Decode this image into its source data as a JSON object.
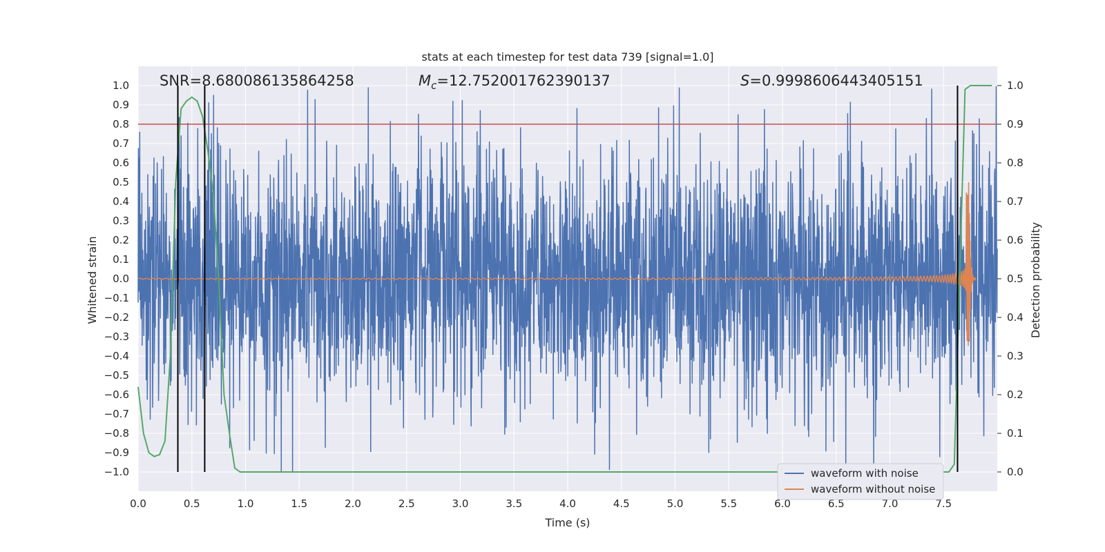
{
  "chart_data": {
    "type": "line",
    "title": "stats at each timestep for test data 739 [signal=1.0]",
    "xlabel": "Time (s)",
    "ylabel": "Whitened strain",
    "y2label": "Detection probability",
    "xlim": [
      0.0,
      8.0
    ],
    "ylim": [
      -1.1,
      1.1
    ],
    "y2lim": [
      -0.05,
      1.05
    ],
    "xticks": [
      0.0,
      0.5,
      1.0,
      1.5,
      2.0,
      2.5,
      3.0,
      3.5,
      4.0,
      4.5,
      5.0,
      5.5,
      6.0,
      6.5,
      7.0,
      7.5
    ],
    "xtick_labels": [
      "0.0",
      "0.5",
      "1.0",
      "1.5",
      "2.0",
      "2.5",
      "3.0",
      "3.5",
      "4.0",
      "4.5",
      "5.0",
      "5.5",
      "6.0",
      "6.5",
      "7.0",
      "7.5"
    ],
    "yticks": [
      -1.0,
      -0.9,
      -0.8,
      -0.7,
      -0.6,
      -0.5,
      -0.4,
      -0.3,
      -0.2,
      -0.1,
      0.0,
      0.1,
      0.2,
      0.3,
      0.4,
      0.5,
      0.6,
      0.7,
      0.8,
      0.9,
      1.0
    ],
    "ytick_labels": [
      "−1.0",
      "−0.9",
      "−0.8",
      "−0.7",
      "−0.6",
      "−0.5",
      "−0.4",
      "−0.3",
      "−0.2",
      "−0.1",
      "0.0",
      "0.1",
      "0.2",
      "0.3",
      "0.4",
      "0.5",
      "0.6",
      "0.7",
      "0.8",
      "0.9",
      "1.0"
    ],
    "y2ticks": [
      0.0,
      0.1,
      0.2,
      0.3,
      0.4,
      0.5,
      0.6,
      0.7,
      0.8,
      0.9,
      1.0
    ],
    "y2tick_labels": [
      "0.0",
      "0.1",
      "0.2",
      "0.3",
      "0.4",
      "0.5",
      "0.6",
      "0.7",
      "0.8",
      "0.9",
      "1.0"
    ],
    "threshold_line": {
      "value": 0.9,
      "axis": "y2",
      "color": "#c44e52"
    },
    "vertical_lines": [
      {
        "x": 0.37,
        "color": "#000000"
      },
      {
        "x": 0.62,
        "color": "#000000"
      },
      {
        "x": 7.63,
        "color": "#000000"
      }
    ],
    "annotations": {
      "snr": "SNR=8.680086135864258",
      "mc_symbol": "M",
      "mc_sub": "c",
      "mc_value": "=12.752001762390137",
      "s_symbol": "S",
      "s_value": "=0.9998606443405151"
    },
    "series": [
      {
        "name": "waveform with noise",
        "axis": "y",
        "color": "#4c72b0",
        "kind": "noise",
        "x_range": [
          0.0,
          8.0
        ],
        "typical_amplitude": 0.35,
        "max_value": 1.0,
        "min_value": -1.0
      },
      {
        "name": "waveform without noise",
        "axis": "y",
        "color": "#dd8452",
        "kind": "chirp",
        "x_range": [
          0.0,
          7.8
        ],
        "peak_time": 7.74,
        "peak_max": 0.5,
        "peak_min": -0.35
      },
      {
        "name": "Detection probability",
        "axis": "y2",
        "color": "#55a868",
        "x": [
          0.0,
          0.05,
          0.1,
          0.15,
          0.2,
          0.25,
          0.3,
          0.35,
          0.4,
          0.45,
          0.5,
          0.55,
          0.6,
          0.65,
          0.7,
          0.75,
          0.8,
          0.85,
          0.9,
          0.95,
          1.0,
          7.55,
          7.6,
          7.65,
          7.7,
          7.75,
          7.8,
          7.85,
          7.9,
          7.95
        ],
        "values": [
          0.22,
          0.1,
          0.05,
          0.04,
          0.045,
          0.08,
          0.3,
          0.75,
          0.94,
          0.96,
          0.97,
          0.96,
          0.92,
          0.83,
          0.72,
          0.5,
          0.2,
          0.1,
          0.01,
          0.0,
          0.0,
          0.0,
          0.02,
          0.5,
          0.99,
          1.0,
          1.0,
          1.0,
          1.0,
          1.0
        ]
      }
    ],
    "legend": {
      "position": "bottom-right",
      "entries": [
        "waveform with noise",
        "waveform without noise"
      ]
    },
    "colors": {
      "plot_background": "#eaeaf2",
      "grid": "#ffffff"
    }
  }
}
